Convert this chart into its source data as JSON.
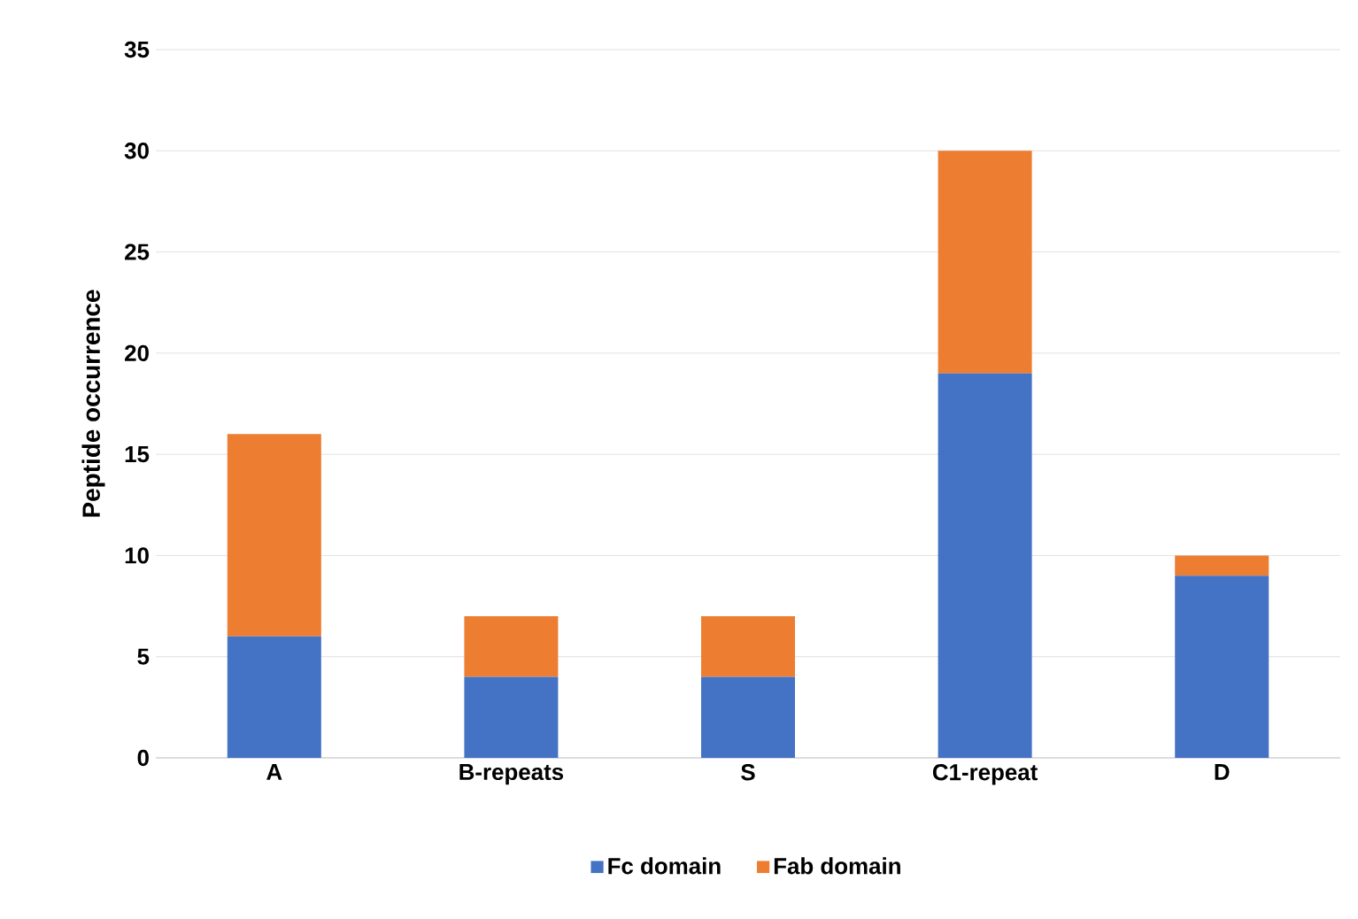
{
  "chart_data": {
    "type": "bar",
    "stacked": true,
    "ylabel": "Peptide occurrence",
    "categories": [
      "A",
      "B-repeats",
      "S",
      "C1-repeat",
      "D"
    ],
    "series": [
      {
        "name": "Fc domain",
        "color": "#4472c4",
        "values": [
          6,
          4,
          4,
          19,
          9
        ]
      },
      {
        "name": "Fab domain",
        "color": "#ed7d31",
        "values": [
          10,
          3,
          3,
          11,
          1
        ]
      }
    ],
    "ylim": [
      0,
      35
    ],
    "yticks": [
      0,
      5,
      10,
      15,
      20,
      25,
      30,
      35
    ],
    "grid": "y",
    "legend": "bottom"
  }
}
